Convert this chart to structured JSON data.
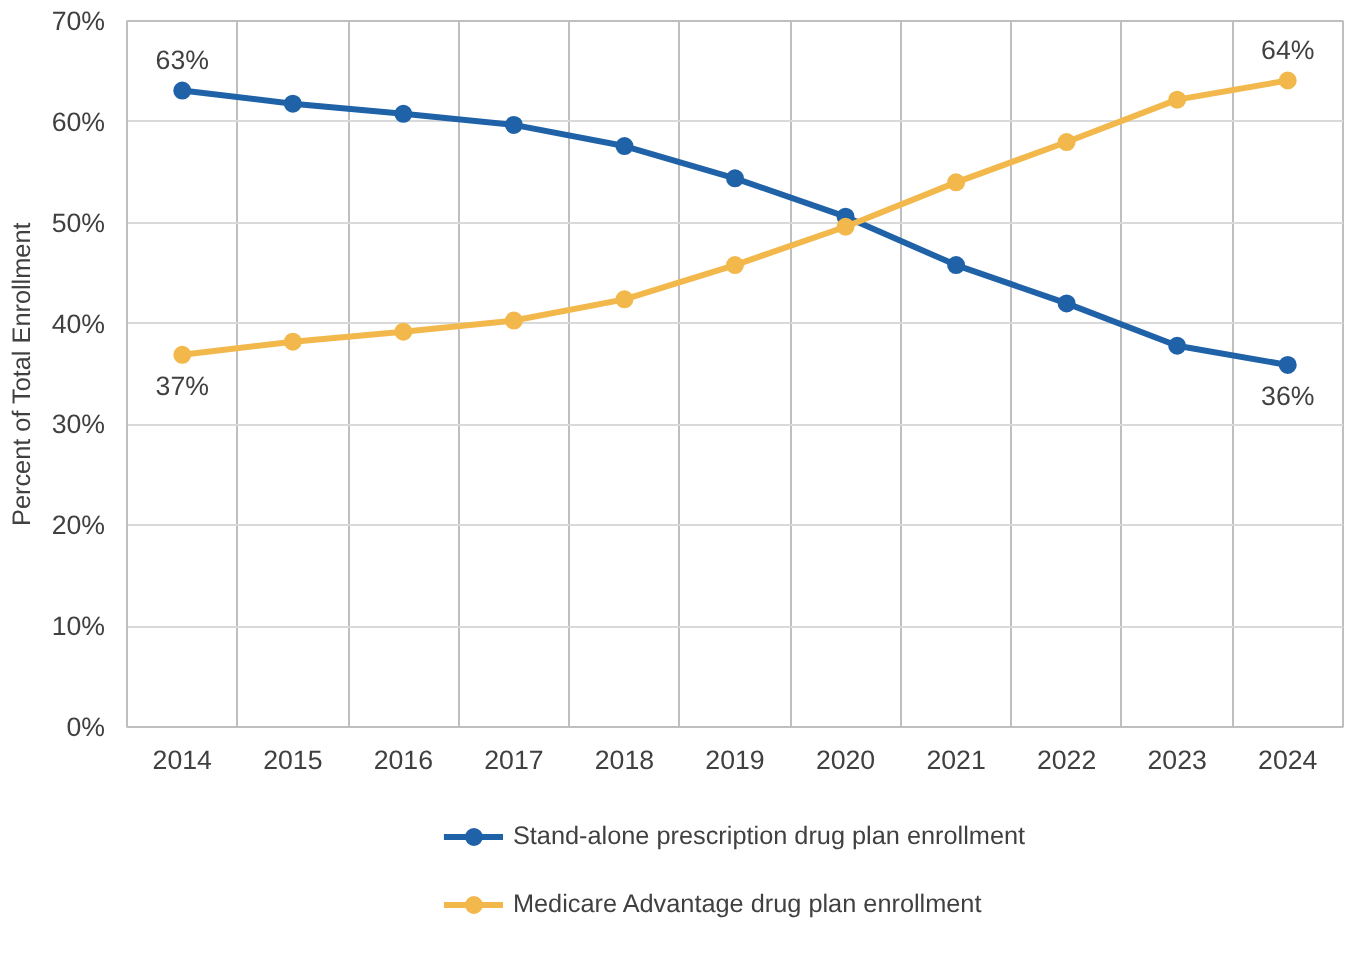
{
  "chart_data": {
    "type": "line",
    "ylabel": "Percent of Total Enrollment",
    "categories": [
      "2014",
      "2015",
      "2016",
      "2017",
      "2018",
      "2019",
      "2020",
      "2021",
      "2022",
      "2023",
      "2024"
    ],
    "series": [
      {
        "name": "Stand-alone prescription drug plan enrollment",
        "color": "#1f62a8",
        "values": [
          63.1,
          61.8,
          60.8,
          59.7,
          57.6,
          54.4,
          50.6,
          45.8,
          42.0,
          37.8,
          35.9
        ],
        "value_labels": [
          "63%",
          null,
          null,
          null,
          null,
          null,
          null,
          null,
          null,
          null,
          "36%"
        ]
      },
      {
        "name": "Medicare Advantage drug plan enrollment",
        "color": "#f2b84b",
        "values": [
          36.9,
          38.2,
          39.2,
          40.3,
          42.4,
          45.8,
          49.6,
          54.0,
          58.0,
          62.2,
          64.1
        ],
        "value_labels": [
          "37%",
          null,
          null,
          null,
          null,
          null,
          null,
          null,
          null,
          null,
          "64%"
        ]
      }
    ],
    "ylim": [
      0,
      70
    ],
    "yticks": [
      {
        "value": 0,
        "label": "0%"
      },
      {
        "value": 10,
        "label": "10%"
      },
      {
        "value": 20,
        "label": "20%"
      },
      {
        "value": 30,
        "label": "30%"
      },
      {
        "value": 40,
        "label": "40%"
      },
      {
        "value": 50,
        "label": "50%"
      },
      {
        "value": 60,
        "label": "60%"
      },
      {
        "value": 70,
        "label": "70%"
      }
    ],
    "grid": true,
    "legend": "bottom",
    "marker": "circle",
    "line_style": "solid"
  }
}
